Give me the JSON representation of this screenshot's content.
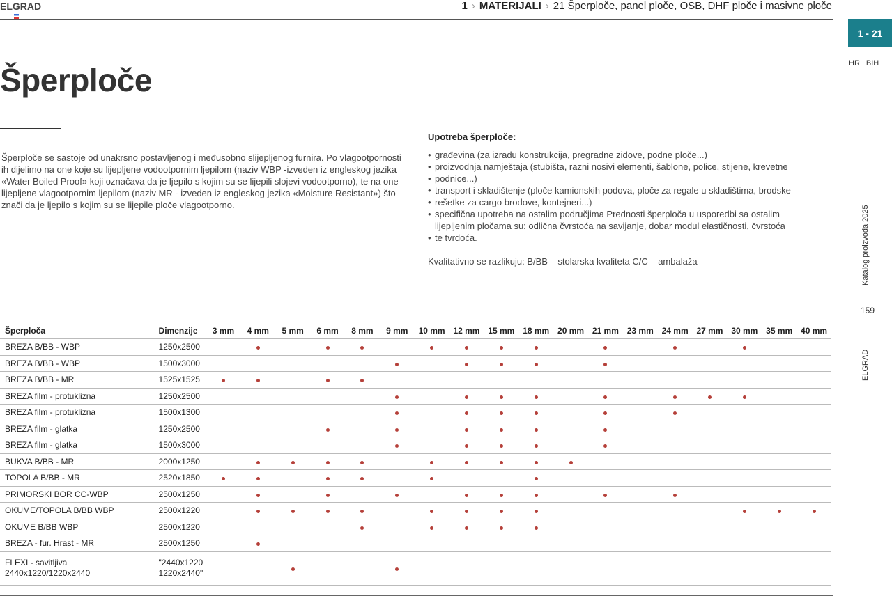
{
  "header": {
    "brand": "ELGRAD",
    "crumb_num": "1",
    "crumb_section": "MATERIJALI",
    "crumb_sub": "21  Šperploče, panel ploče, OSB, DHF ploče i masivne ploče"
  },
  "sidebar": {
    "tab": "1 - 21",
    "lang": "HR | BIH",
    "catalog": "Katalog proizvoda 2025",
    "page": "159",
    "brand": "ELGRAD",
    "accent": "#1b7f8c"
  },
  "title": "Šperploče",
  "intro": "Šperploče se sastoje od unakrsno postavljenog i međusobno slijepljenog furnira. Po vlagootpornosti ih dijelimo na one koje su lijepljene vodootpornim ljepilom (naziv WBP -izveden iz engleskog jezika «Water Boiled Proof» koji označava da je ljepilo s kojim su se lijepili slojevi vodootporno), te na one lijepljene vlagootpornim ljepilom (naziv MR - izveden iz engleskog jezika «Moisture Resistant») što znači da je ljepilo s kojim su se lijepile ploče vlagootporno.",
  "usage": {
    "heading": "Upotreba šperploče:",
    "items": [
      "građevina (za izradu konstrukcija, pregradne zidove, podne ploče...)",
      "proizvodnja namještaja (stubišta, razni nosivi elementi, šablone, police, stijene, krevetne",
      "podnice...)",
      "transport i skladištenje (ploče kamionskih podova, ploče za regale u skladištima, brodske",
      "rešetke za cargo brodove, kontejneri...)",
      "specifična upotreba na ostalim područjima Prednosti šperploča u usporedbi sa ostalim lijepljenim pločama su: odlična čvrstoća na savijanje, dobar modul elastičnosti, čvrstoća",
      "te tvrdoća."
    ],
    "quality": "Kvalitativno se razlikuju: B/BB – stolarska kvaliteta C/C – ambalaža"
  },
  "table": {
    "col_name": "Šperploča",
    "col_dim": "Dimenzije",
    "thickness": [
      "3 mm",
      "4 mm",
      "5 mm",
      "6 mm",
      "8 mm",
      "9 mm",
      "10 mm",
      "12 mm",
      "15 mm",
      "18 mm",
      "20 mm",
      "21 mm",
      "23 mm",
      "24 mm",
      "27 mm",
      "30 mm",
      "35 mm",
      "40 mm"
    ],
    "dot_color": "#b5403a",
    "rows": [
      {
        "name": "BREZA B/BB - WBP",
        "dim": "1250x2500",
        "avail": [
          "4 mm",
          "6 mm",
          "8 mm",
          "10 mm",
          "12 mm",
          "15 mm",
          "18 mm",
          "21 mm",
          "24 mm",
          "30 mm"
        ]
      },
      {
        "name": "BREZA B/BB - WBP",
        "dim": "1500x3000",
        "avail": [
          "9 mm",
          "12 mm",
          "15 mm",
          "18 mm",
          "21 mm"
        ]
      },
      {
        "name": "BREZA B/BB - MR",
        "dim": "1525x1525",
        "avail": [
          "3 mm",
          "4 mm",
          "6 mm",
          "8 mm"
        ]
      },
      {
        "name": "BREZA film - protuklizna",
        "dim": "1250x2500",
        "avail": [
          "9 mm",
          "12 mm",
          "15 mm",
          "18 mm",
          "21 mm",
          "24 mm",
          "27 mm",
          "30 mm"
        ]
      },
      {
        "name": "BREZA film - protuklizna",
        "dim": "1500x1300",
        "avail": [
          "9 mm",
          "12 mm",
          "15 mm",
          "18 mm",
          "21 mm",
          "24 mm"
        ]
      },
      {
        "name": "BREZA film - glatka",
        "dim": "1250x2500",
        "avail": [
          "6 mm",
          "9 mm",
          "12 mm",
          "15 mm",
          "18 mm",
          "21 mm"
        ]
      },
      {
        "name": "BREZA film - glatka",
        "dim": "1500x3000",
        "avail": [
          "9 mm",
          "12 mm",
          "15 mm",
          "18 mm",
          "21 mm"
        ]
      },
      {
        "name": "BUKVA B/BB - MR",
        "dim": "2000x1250",
        "avail": [
          "4 mm",
          "5 mm",
          "6 mm",
          "8 mm",
          "10 mm",
          "12 mm",
          "15 mm",
          "18 mm",
          "20 mm"
        ]
      },
      {
        "name": "TOPOLA B/BB - MR",
        "dim": "2520x1850",
        "avail": [
          "3 mm",
          "4 mm",
          "6 mm",
          "8 mm",
          "10 mm",
          "18 mm"
        ]
      },
      {
        "name": "PRIMORSKI BOR CC-WBP",
        "dim": "2500x1250",
        "avail": [
          "4 mm",
          "6 mm",
          "9 mm",
          "12 mm",
          "15 mm",
          "18 mm",
          "21 mm",
          "24 mm"
        ]
      },
      {
        "name": "OKUME/TOPOLA B/BB WBP",
        "dim": "2500x1220",
        "avail": [
          "4 mm",
          "5 mm",
          "6 mm",
          "8 mm",
          "10 mm",
          "12 mm",
          "15 mm",
          "18 mm",
          "30 mm",
          "35 mm",
          "40 mm"
        ]
      },
      {
        "name": "OKUME B/BB WBP",
        "dim": "2500x1220",
        "avail": [
          "8 mm",
          "10 mm",
          "12 mm",
          "15 mm",
          "18 mm"
        ]
      },
      {
        "name": "BREZA - fur. Hrast - MR",
        "dim": "2500x1250",
        "avail": [
          "4 mm"
        ]
      },
      {
        "name": "FLEXI - savitljiva\n2440x1220/1220x2440",
        "dim": "\"2440x1220\n1220x2440\"",
        "avail": [
          "5 mm",
          "9 mm"
        ]
      }
    ]
  }
}
